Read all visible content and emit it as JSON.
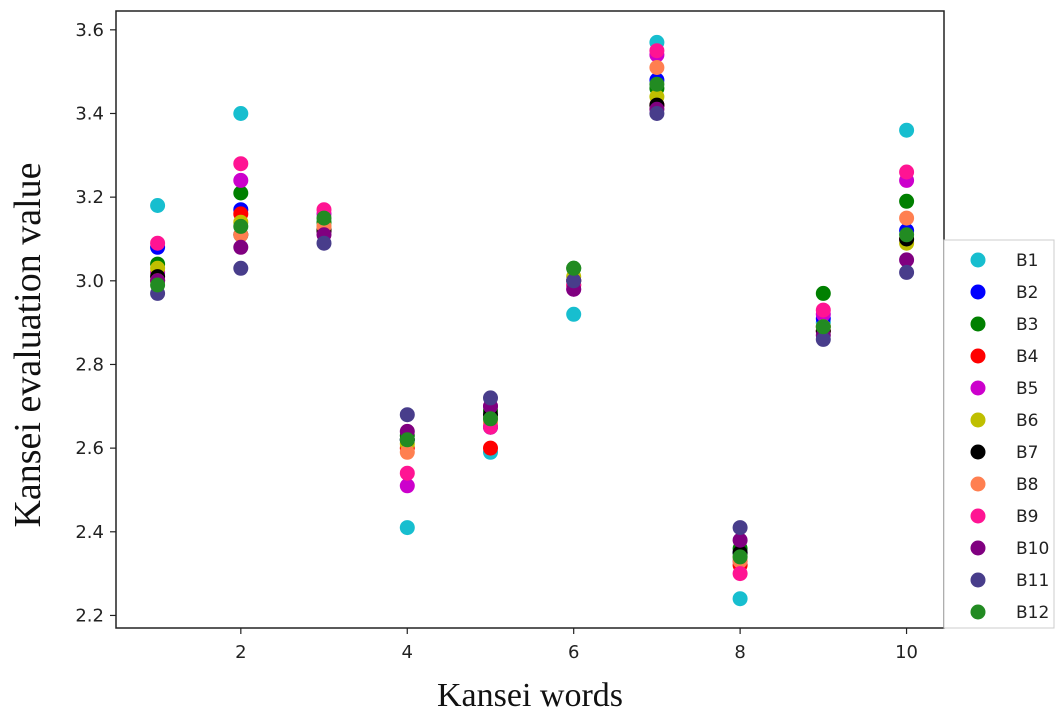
{
  "chart_data": {
    "type": "scatter",
    "title": "",
    "xlabel": "Kansei words",
    "ylabel": "Kansei evaluation value",
    "xlim": [
      0.5,
      10.45
    ],
    "ylim": [
      2.17,
      3.645
    ],
    "xticks": [
      2,
      4,
      6,
      8,
      10
    ],
    "xtick_labels": [
      "2",
      "4",
      "6",
      "8",
      "10"
    ],
    "yticks": [
      2.2,
      2.4,
      2.6,
      2.8,
      3.0,
      3.2,
      3.4,
      3.6
    ],
    "ytick_labels": [
      "2.2",
      "2.4",
      "2.6",
      "2.8",
      "3.0",
      "3.2",
      "3.4",
      "3.6"
    ],
    "grid": false,
    "legend_position": "right",
    "x": [
      1,
      2,
      3,
      4,
      5,
      6,
      7,
      8,
      9,
      10
    ],
    "series": [
      {
        "name": "B1",
        "color": "#17becf",
        "values": [
          3.18,
          3.4,
          3.13,
          2.41,
          2.59,
          2.92,
          3.57,
          2.24,
          2.9,
          3.36
        ]
      },
      {
        "name": "B2",
        "color": "#0000ff",
        "values": [
          3.08,
          3.17,
          3.12,
          2.62,
          2.65,
          3.0,
          3.48,
          2.35,
          2.91,
          3.12
        ]
      },
      {
        "name": "B3",
        "color": "#008000",
        "values": [
          3.04,
          3.21,
          3.14,
          2.63,
          2.69,
          3.03,
          3.46,
          2.36,
          2.97,
          3.19
        ]
      },
      {
        "name": "B4",
        "color": "#ff0000",
        "values": [
          3.0,
          3.16,
          3.12,
          2.6,
          2.6,
          2.99,
          3.42,
          2.32,
          2.88,
          3.1
        ]
      },
      {
        "name": "B5",
        "color": "#cc00cc",
        "values": [
          3.02,
          3.24,
          3.16,
          2.51,
          2.7,
          2.98,
          3.54,
          2.33,
          2.92,
          3.24
        ]
      },
      {
        "name": "B6",
        "color": "#bfbf00",
        "values": [
          3.03,
          3.14,
          3.13,
          2.61,
          2.67,
          3.01,
          3.44,
          2.34,
          2.89,
          3.09
        ]
      },
      {
        "name": "B7",
        "color": "#000000",
        "values": [
          3.01,
          3.11,
          3.12,
          2.62,
          2.68,
          3.0,
          3.42,
          2.35,
          2.88,
          3.1
        ]
      },
      {
        "name": "B8",
        "color": "#ff7f50",
        "values": [
          3.0,
          3.11,
          3.13,
          2.59,
          2.66,
          3.0,
          3.51,
          2.33,
          2.89,
          3.15
        ]
      },
      {
        "name": "B9",
        "color": "#ff1493",
        "values": [
          3.09,
          3.28,
          3.17,
          2.54,
          2.65,
          2.99,
          3.55,
          2.3,
          2.93,
          3.26
        ]
      },
      {
        "name": "B10",
        "color": "#800080",
        "values": [
          3.0,
          3.08,
          3.11,
          2.64,
          2.7,
          2.98,
          3.41,
          2.38,
          2.87,
          3.05
        ]
      },
      {
        "name": "B11",
        "color": "#483d8b",
        "values": [
          2.97,
          3.03,
          3.09,
          2.68,
          2.72,
          3.0,
          3.4,
          2.41,
          2.86,
          3.02
        ]
      },
      {
        "name": "B12",
        "color": "#228b22",
        "values": [
          2.99,
          3.13,
          3.15,
          2.62,
          2.67,
          3.03,
          3.47,
          2.34,
          2.89,
          3.11
        ]
      }
    ]
  }
}
